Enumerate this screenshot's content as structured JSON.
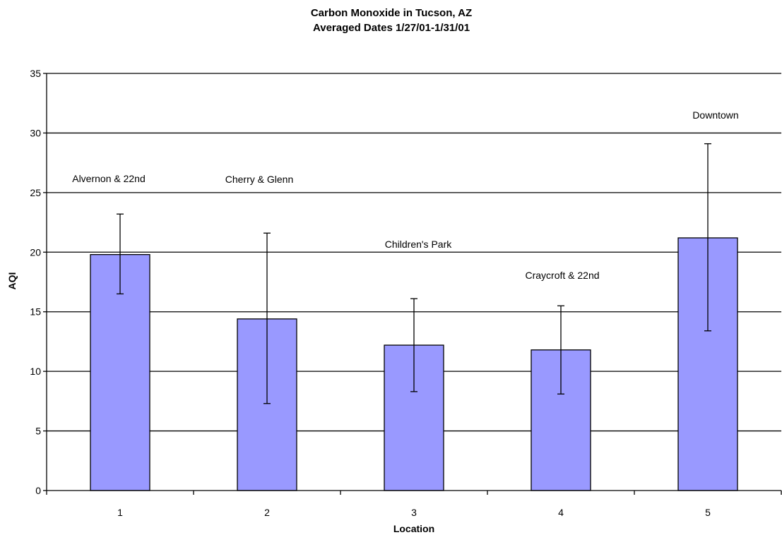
{
  "chart_data": {
    "type": "bar",
    "title": "Carbon Monoxide in Tucson, AZ",
    "subtitle": "Averaged Dates 1/27/01-1/31/01",
    "xlabel": "Location",
    "ylabel": "AQI",
    "ylim": [
      0,
      35
    ],
    "yticks": [
      "0",
      "5",
      "10",
      "15",
      "20",
      "25",
      "30",
      "35"
    ],
    "categories": [
      "1",
      "2",
      "3",
      "4",
      "5"
    ],
    "values": [
      19.8,
      14.4,
      12.2,
      11.8,
      21.2
    ],
    "error_low": [
      16.5,
      7.3,
      8.3,
      8.1,
      13.4
    ],
    "error_high": [
      23.2,
      21.6,
      16.1,
      15.5,
      29.1
    ],
    "annotations": [
      "Alvernon & 22nd",
      "Cherry & Glenn",
      "Children's Park",
      "Craycroft & 22nd",
      "Downtown"
    ],
    "bar_color": "#9999ff",
    "grid": true,
    "legend": "none"
  }
}
